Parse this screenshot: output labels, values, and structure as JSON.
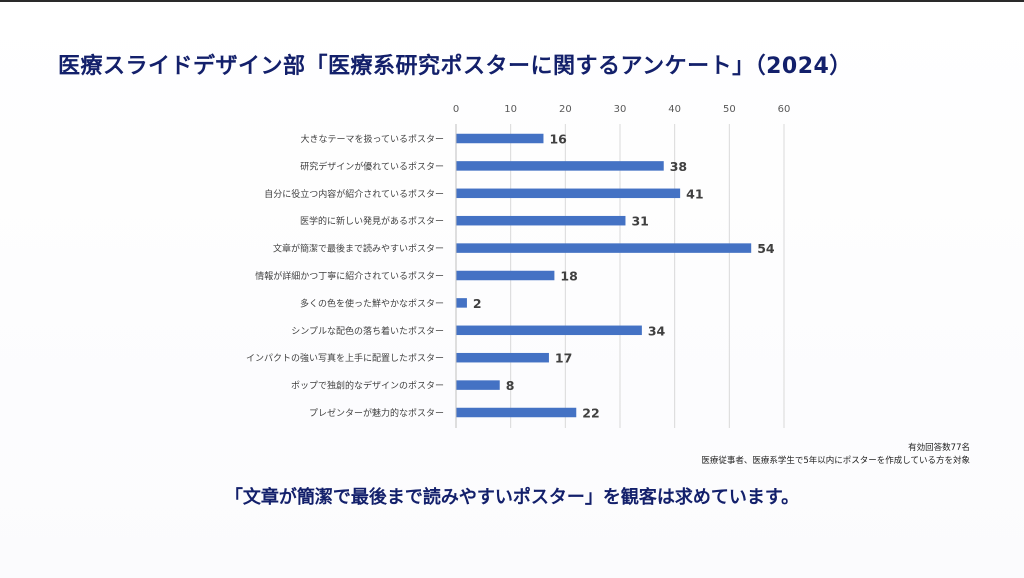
{
  "title": "医療スライドデザイン部「医療系研究ポスターに関するアンケート」（2024）",
  "chart_data": {
    "type": "bar",
    "orientation": "horizontal",
    "title": "医療スライドデザイン部「医療系研究ポスターに関するアンケート」（2024）",
    "xlabel": "",
    "ylabel": "",
    "xlim": [
      0,
      60
    ],
    "x_ticks": [
      0,
      10,
      20,
      30,
      40,
      50,
      60
    ],
    "grid": true,
    "bar_color": "#4472c4",
    "categories": [
      "大きなテーマを扱っているポスター",
      "研究デザインが優れているポスター",
      "自分に役立つ内容が紹介されているポスター",
      "医学的に新しい発見があるポスター",
      "文章が簡潔で最後まで読みやすいポスター",
      "情報が詳細かつ丁寧に紹介されているポスター",
      "多くの色を使った鮮やかなポスター",
      "シンプルな配色の落ち着いたポスター",
      "インパクトの強い写真を上手に配置したポスター",
      "ポップで独創的なデザインのポスター",
      "プレゼンターが魅力的なポスター"
    ],
    "values": [
      16,
      38,
      41,
      31,
      54,
      18,
      2,
      34,
      17,
      8,
      22
    ]
  },
  "notes": {
    "respondents": "有効回答数77名",
    "target": "医療従事者、医療系学生で5年以内にポスターを作成している方を対象"
  },
  "conclusion": "「文章が簡潔で最後まで読みやすいポスター」を観客は求めています。"
}
